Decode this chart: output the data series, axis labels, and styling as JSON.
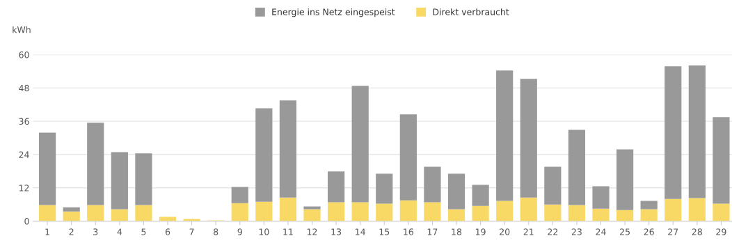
{
  "chart_data": {
    "type": "bar",
    "stacked": true,
    "ylabel": "kWh",
    "categories": [
      "1",
      "2",
      "3",
      "4",
      "5",
      "6",
      "7",
      "8",
      "9",
      "10",
      "11",
      "12",
      "13",
      "14",
      "15",
      "16",
      "17",
      "18",
      "19",
      "20",
      "21",
      "22",
      "23",
      "24",
      "25",
      "26",
      "27",
      "28",
      "29"
    ],
    "series": [
      {
        "name": "Direkt verbraucht",
        "color": "#f9d966",
        "values": [
          5.8,
          3.5,
          5.8,
          4.3,
          5.8,
          1.5,
          0.8,
          0.3,
          6.5,
          7.0,
          8.5,
          4.3,
          6.8,
          6.8,
          6.3,
          7.5,
          6.8,
          4.3,
          5.5,
          7.3,
          8.5,
          6.0,
          5.8,
          4.5,
          4.0,
          4.3,
          8.0,
          8.3,
          6.3
        ]
      },
      {
        "name": "Energie ins Netz eingespeist",
        "color": "#999999",
        "values": [
          26.1,
          1.5,
          29.7,
          20.6,
          18.6,
          null,
          null,
          null,
          5.8,
          33.7,
          35.0,
          1.0,
          11.1,
          42.0,
          10.8,
          31.0,
          12.8,
          12.8,
          7.6,
          47.0,
          42.8,
          13.6,
          27.1,
          8.1,
          21.9,
          3.0,
          47.8,
          47.8,
          31.2
        ]
      }
    ],
    "ylim": [
      0,
      60
    ],
    "yticks": [
      0,
      12,
      24,
      36,
      48,
      60
    ],
    "grid": "y",
    "legend": "top"
  }
}
